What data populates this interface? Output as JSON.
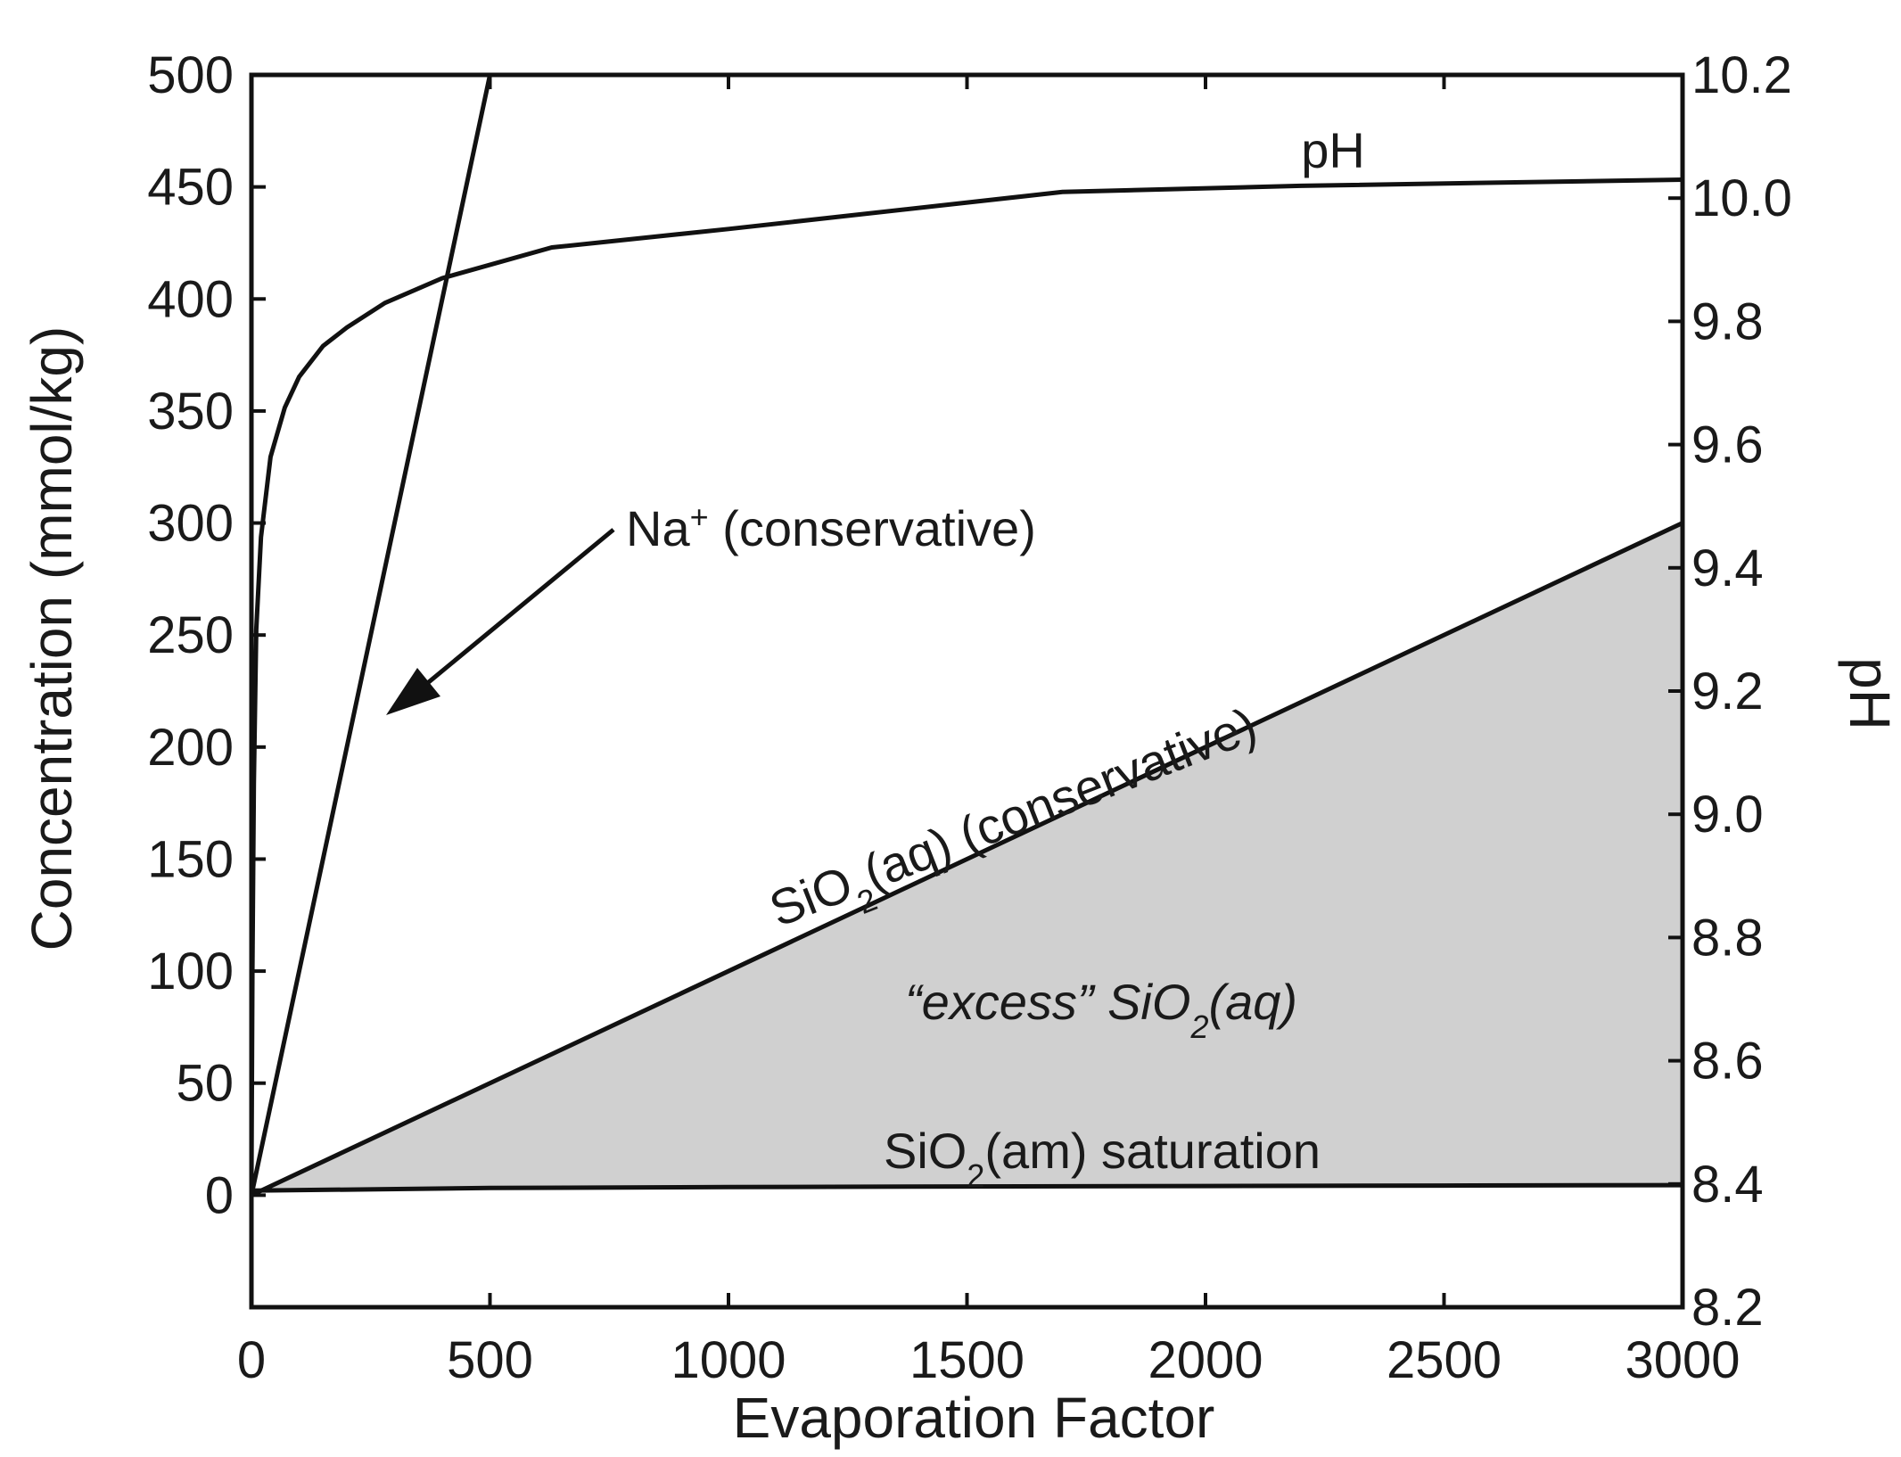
{
  "chart_data": {
    "type": "line",
    "xlabel": "Evaporation Factor",
    "ylabel": "Concentration (mmol/kg)",
    "y2label": "pH",
    "xlim": [
      0,
      3000
    ],
    "ylim": [
      -50,
      500
    ],
    "y2lim": [
      8.2,
      10.2
    ],
    "grid": false,
    "x_ticks": [
      {
        "value": 0,
        "label": "0"
      },
      {
        "value": 500,
        "label": "500"
      },
      {
        "value": 1000,
        "label": "1000"
      },
      {
        "value": 1500,
        "label": "1500"
      },
      {
        "value": 2000,
        "label": "2000"
      },
      {
        "value": 2500,
        "label": "2500"
      },
      {
        "value": 3000,
        "label": "3000"
      }
    ],
    "y_ticks": [
      {
        "value": 0,
        "label": "0"
      },
      {
        "value": 50,
        "label": "50"
      },
      {
        "value": 100,
        "label": "100"
      },
      {
        "value": 150,
        "label": "150"
      },
      {
        "value": 200,
        "label": "200"
      },
      {
        "value": 250,
        "label": "250"
      },
      {
        "value": 300,
        "label": "300"
      },
      {
        "value": 350,
        "label": "350"
      },
      {
        "value": 400,
        "label": "400"
      },
      {
        "value": 450,
        "label": "450"
      },
      {
        "value": 500,
        "label": "500"
      }
    ],
    "y2_ticks": [
      {
        "value": 8.2,
        "label": "8.2"
      },
      {
        "value": 8.4,
        "label": "8.4"
      },
      {
        "value": 8.6,
        "label": "8.6"
      },
      {
        "value": 8.8,
        "label": "8.8"
      },
      {
        "value": 9.0,
        "label": "9.0"
      },
      {
        "value": 9.2,
        "label": "9.2"
      },
      {
        "value": 9.4,
        "label": "9.4"
      },
      {
        "value": 9.6,
        "label": "9.6"
      },
      {
        "value": 9.8,
        "label": "9.8"
      },
      {
        "value": 10.0,
        "label": "10.0"
      },
      {
        "value": 10.2,
        "label": "10.2"
      }
    ],
    "series": [
      {
        "name": "Na+ (conservative)",
        "axis": "left",
        "x": [
          0,
          500
        ],
        "y": [
          0,
          500
        ]
      },
      {
        "name": "SiO2(aq) (conservative)",
        "axis": "left",
        "x": [
          0,
          3000
        ],
        "y": [
          0,
          300
        ]
      },
      {
        "name": "SiO2(am) saturation",
        "axis": "left",
        "x": [
          0,
          500,
          1000,
          1500,
          2000,
          2500,
          3000
        ],
        "y": [
          2,
          3.2,
          3.6,
          3.9,
          4.1,
          4.3,
          4.5
        ]
      },
      {
        "name": "pH",
        "axis": "right",
        "x": [
          0,
          2,
          5,
          10,
          20,
          40,
          70,
          100,
          150,
          200,
          280,
          400,
          630,
          1000,
          1700,
          2200,
          3000
        ],
        "y": [
          8.4,
          8.75,
          9.05,
          9.3,
          9.45,
          9.58,
          9.66,
          9.71,
          9.76,
          9.79,
          9.83,
          9.87,
          9.92,
          9.95,
          10.01,
          10.02,
          10.03
        ]
      }
    ],
    "shaded_region": {
      "name": "excess SiO2(aq)",
      "between": [
        "SiO2(aq) (conservative)",
        "SiO2(am) saturation"
      ],
      "color": "#d0d0d0"
    },
    "annotations": {
      "ph_label": "pH",
      "na_label_main": "Na",
      "na_label_sup": "+",
      "na_label_rest": " (conservative)",
      "sio2aq_label_a": "SiO",
      "sio2aq_label_sub": "2",
      "sio2aq_label_b": "(aq) (conservative)",
      "excess_label_a": "“excess” SiO",
      "excess_label_sub": "2",
      "excess_label_b": "(aq)",
      "sat_label_a": "SiO",
      "sat_label_sub": "2",
      "sat_label_b": "(am) saturation"
    },
    "colors": {
      "line": "#111111",
      "fill": "#d0d0d0",
      "background": "#ffffff"
    }
  }
}
